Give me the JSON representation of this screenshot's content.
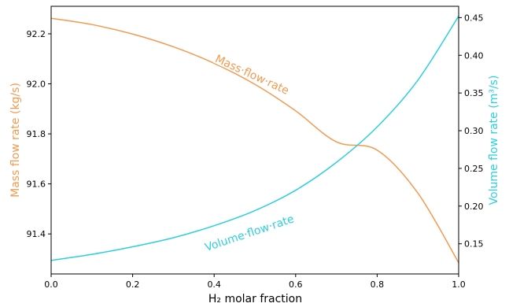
{
  "chart_data": {
    "type": "line",
    "xlabel": "H₂ molar fraction",
    "ylabel_left": "Mass flow rate (kg/s)",
    "ylabel_right": "Volume flow rate (m³/s)",
    "xlim": [
      0.0,
      1.0
    ],
    "ylim_left": [
      91.24,
      92.31
    ],
    "ylim_right": [
      0.11,
      0.465
    ],
    "x_ticks": [
      "0.0",
      "0.2",
      "0.4",
      "0.6",
      "0.8",
      "1.0"
    ],
    "y_left_ticks": [
      "91.4",
      "91.6",
      "91.8",
      "92.0",
      "92.2"
    ],
    "y_right_ticks": [
      "0.15",
      "0.20",
      "0.25",
      "0.30",
      "0.35",
      "0.40",
      "0.45"
    ],
    "grid": false,
    "series": [
      {
        "name": "Mass·flow·rate",
        "axis": "left",
        "color": "#f39a50",
        "x": [
          0.0,
          0.1,
          0.2,
          0.3,
          0.4,
          0.5,
          0.6,
          0.7,
          0.8,
          0.9,
          1.0
        ],
        "y": [
          92.262,
          92.237,
          92.199,
          92.148,
          92.082,
          91.998,
          91.892,
          91.768,
          91.735,
          91.563,
          91.285
        ]
      },
      {
        "name": "Volume·flow·rate",
        "axis": "right",
        "color": "#2ccfe0",
        "x": [
          0.0,
          0.1,
          0.2,
          0.3,
          0.4,
          0.5,
          0.6,
          0.7,
          0.8,
          0.9,
          1.0
        ],
        "y": [
          0.128,
          0.136,
          0.146,
          0.158,
          0.174,
          0.194,
          0.221,
          0.258,
          0.305,
          0.367,
          0.452
        ]
      }
    ]
  }
}
